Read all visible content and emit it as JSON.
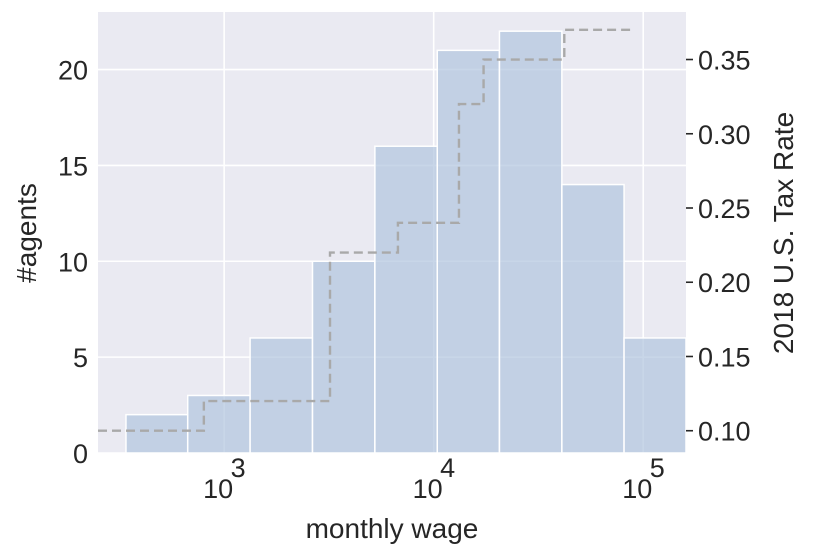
{
  "chart_data": {
    "type": "bar",
    "title": "",
    "xlabel": "monthly wage",
    "ylabel": "#agents",
    "y2label": "2018 U.S. Tax Rate",
    "x_scale": "log",
    "xlim": [
      250,
      160000
    ],
    "ylim": [
      0,
      23
    ],
    "y2lim": [
      0.085,
      0.382
    ],
    "x_ticks": [
      {
        "value": 1000,
        "base": "10",
        "exp": "3"
      },
      {
        "value": 10000,
        "base": "10",
        "exp": "4"
      },
      {
        "value": 100000,
        "base": "10",
        "exp": "5"
      }
    ],
    "y_ticks": [
      {
        "value": 0,
        "label": "0"
      },
      {
        "value": 5,
        "label": "5"
      },
      {
        "value": 10,
        "label": "10"
      },
      {
        "value": 15,
        "label": "15"
      },
      {
        "value": 20,
        "label": "20"
      }
    ],
    "y2_ticks": [
      {
        "value": 0.1,
        "label": "0.10"
      },
      {
        "value": 0.15,
        "label": "0.15"
      },
      {
        "value": 0.2,
        "label": "0.20"
      },
      {
        "value": 0.25,
        "label": "0.25"
      },
      {
        "value": 0.3,
        "label": "0.30"
      },
      {
        "value": 0.35,
        "label": "0.35"
      }
    ],
    "histogram": {
      "bin_edges": [
        340,
        670,
        1330,
        2640,
        5240,
        10400,
        20600,
        40900,
        81000,
        160000
      ],
      "counts": [
        2,
        3,
        6,
        10,
        16,
        21,
        22,
        14,
        6
      ]
    },
    "tax_schedule": {
      "x": [
        250,
        800,
        800,
        3200,
        3200,
        6750,
        6750,
        13200,
        13200,
        17300,
        17300,
        42000,
        42000,
        90000
      ],
      "y": [
        0.1,
        0.1,
        0.12,
        0.12,
        0.22,
        0.22,
        0.24,
        0.24,
        0.32,
        0.32,
        0.35,
        0.35,
        0.37,
        0.37
      ]
    },
    "grid": true,
    "colors": {
      "background": "#eaeaf2",
      "grid": "#ffffff",
      "bar_fill": "#b0c4de",
      "bar_opacity": 0.7,
      "bar_edge": "#ffffff",
      "tax_line": "#a9a9a9",
      "text": "#262626"
    }
  }
}
